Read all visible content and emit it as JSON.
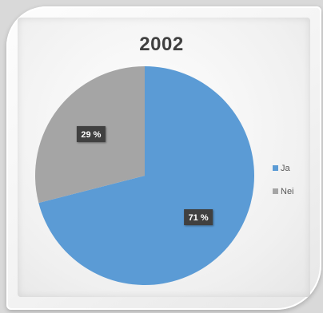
{
  "chart_data": {
    "type": "pie",
    "title": "2002",
    "categories": [
      "Ja",
      "Nei"
    ],
    "values": [
      71,
      29
    ],
    "value_labels": [
      "71 %",
      "29 %"
    ],
    "colors": [
      "#5b9bd5",
      "#a5a5a5"
    ],
    "legend_position": "right"
  },
  "legend": {
    "items": [
      {
        "label": "Ja",
        "color": "#5b9bd5"
      },
      {
        "label": "Nei",
        "color": "#a5a5a5"
      }
    ]
  }
}
